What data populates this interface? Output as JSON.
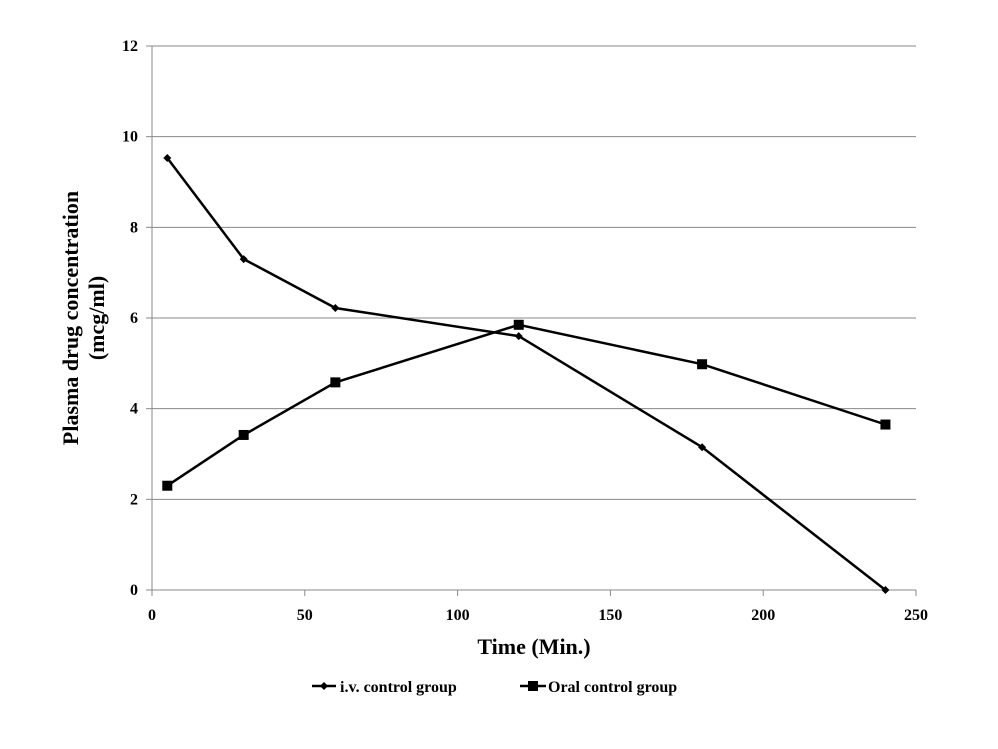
{
  "chart_data": {
    "type": "line",
    "title": "",
    "xlabel": "Time (Min.)",
    "ylabel_lines": [
      "Plasma drug concentration",
      "(mcg/ml)"
    ],
    "xlim": [
      0,
      250
    ],
    "ylim": [
      0,
      12
    ],
    "xticks": [
      0,
      50,
      100,
      150,
      200,
      250
    ],
    "yticks": [
      0,
      2,
      4,
      6,
      8,
      10,
      12
    ],
    "grid": "horizontal",
    "legend_position": "bottom",
    "series": [
      {
        "name": "i.v. control group",
        "marker": "diamond",
        "color": "#000000",
        "x": [
          5,
          30,
          60,
          120,
          180,
          240
        ],
        "y": [
          9.53,
          7.3,
          6.22,
          5.6,
          3.15,
          0.0
        ]
      },
      {
        "name": "Oral control group",
        "marker": "square",
        "color": "#000000",
        "x": [
          5,
          30,
          60,
          120,
          180,
          240
        ],
        "y": [
          2.3,
          3.42,
          4.58,
          5.85,
          4.98,
          3.65
        ]
      }
    ]
  }
}
